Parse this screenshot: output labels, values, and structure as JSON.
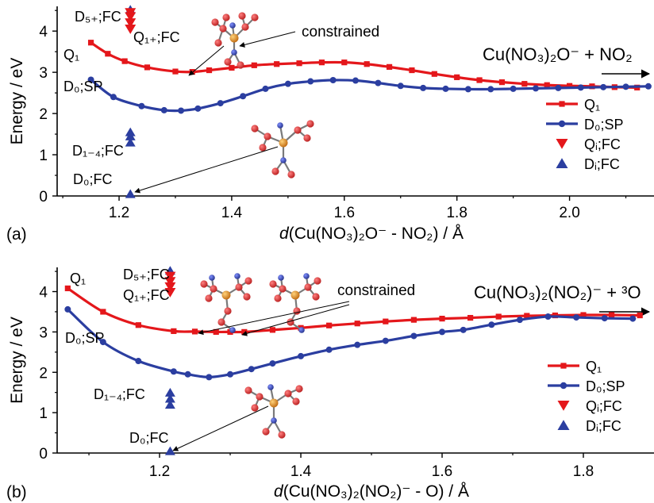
{
  "chart_data": [
    {
      "type": "line",
      "panel_label": "(a)",
      "xlabel": {
        "italic": "d",
        "rest": "(Cu(NO₃)₂O⁻ - NO₂) / Å"
      },
      "ylabel": "Energy / eV",
      "xlim": [
        1.09,
        2.15
      ],
      "ylim": [
        0,
        4.6
      ],
      "xticks": [
        1.2,
        1.4,
        1.6,
        1.8,
        2.0
      ],
      "yticks": [
        0,
        1,
        2,
        3,
        4
      ],
      "legend_position": "right",
      "product_label": "Cu(NO₃)₂O⁻ + NO₂",
      "annotation": "constrained",
      "series": [
        {
          "name": "Q₁",
          "color": "#e4171b",
          "marker": "square",
          "x": [
            1.15,
            1.18,
            1.21,
            1.25,
            1.3,
            1.33,
            1.36,
            1.4,
            1.44,
            1.48,
            1.52,
            1.56,
            1.6,
            1.64,
            1.68,
            1.72,
            1.76,
            1.8,
            1.84,
            1.88,
            1.92,
            1.96,
            2.0,
            2.04,
            2.08,
            2.12
          ],
          "y": [
            3.72,
            3.45,
            3.27,
            3.12,
            3.02,
            3.01,
            3.05,
            3.11,
            3.17,
            3.2,
            3.22,
            3.24,
            3.24,
            3.2,
            3.13,
            3.05,
            2.96,
            2.88,
            2.81,
            2.76,
            2.72,
            2.69,
            2.67,
            2.66,
            2.64,
            2.63
          ]
        },
        {
          "name": "D₀;SP",
          "color": "#2b3ea0",
          "marker": "circle",
          "x": [
            1.15,
            1.19,
            1.24,
            1.28,
            1.31,
            1.34,
            1.38,
            1.42,
            1.46,
            1.5,
            1.54,
            1.58,
            1.62,
            1.66,
            1.7,
            1.74,
            1.78,
            1.82,
            1.86,
            1.9,
            1.94,
            1.98,
            2.02,
            2.06,
            2.1,
            2.14
          ],
          "y": [
            2.82,
            2.4,
            2.18,
            2.08,
            2.07,
            2.12,
            2.25,
            2.42,
            2.6,
            2.72,
            2.78,
            2.81,
            2.8,
            2.74,
            2.67,
            2.62,
            2.6,
            2.59,
            2.59,
            2.6,
            2.61,
            2.62,
            2.63,
            2.64,
            2.65,
            2.66
          ]
        }
      ],
      "fc_points": {
        "Q_down": {
          "x": 1.22,
          "y": [
            4.05,
            4.2,
            4.35,
            4.45
          ]
        },
        "D_up": {
          "x": 1.22,
          "y": [
            1.3,
            1.45,
            1.55,
            4.52
          ]
        },
        "D0": {
          "x": 1.22,
          "y": 0.05
        }
      },
      "labels": {
        "q1": "Q₁",
        "d0sp": "D₀;SP",
        "d5": "D₅₊;FC",
        "q1fc": "Q₁₊;FC",
        "d14": "D₁₋₄;FC",
        "d0fc": "D₀;FC"
      },
      "legend": [
        "Q₁",
        "D₀;SP",
        "Qᵢ;FC",
        "Dᵢ;FC"
      ]
    },
    {
      "type": "line",
      "panel_label": "(b)",
      "xlabel": {
        "italic": "d",
        "rest": "(Cu(NO₃)₂(NO₂)⁻ - O) / Å"
      },
      "ylabel": "Energy / eV",
      "xlim": [
        1.055,
        1.9
      ],
      "ylim": [
        0,
        4.6
      ],
      "xticks": [
        1.2,
        1.4,
        1.6,
        1.8
      ],
      "yticks": [
        0,
        1,
        2,
        3,
        4
      ],
      "legend_position": "right",
      "product_label": "Cu(NO₃)₂(NO₂)⁻ + ³O",
      "annotation": "constrained",
      "series": [
        {
          "name": "Q₁",
          "color": "#e4171b",
          "marker": "square",
          "x": [
            1.07,
            1.12,
            1.17,
            1.22,
            1.25,
            1.28,
            1.3,
            1.32,
            1.36,
            1.4,
            1.44,
            1.48,
            1.52,
            1.56,
            1.6,
            1.64,
            1.68,
            1.72,
            1.76,
            1.8,
            1.84,
            1.88
          ],
          "y": [
            4.08,
            3.5,
            3.17,
            3.02,
            3.01,
            3.0,
            3.0,
            3.0,
            3.05,
            3.1,
            3.16,
            3.21,
            3.26,
            3.3,
            3.33,
            3.35,
            3.38,
            3.4,
            3.41,
            3.42,
            3.42,
            3.41
          ]
        },
        {
          "name": "D₀;SP",
          "color": "#2b3ea0",
          "marker": "circle",
          "x": [
            1.07,
            1.12,
            1.17,
            1.22,
            1.24,
            1.27,
            1.3,
            1.33,
            1.36,
            1.4,
            1.44,
            1.48,
            1.52,
            1.56,
            1.6,
            1.63,
            1.67,
            1.71,
            1.75,
            1.79,
            1.83,
            1.87
          ],
          "y": [
            3.56,
            2.75,
            2.28,
            2.02,
            1.95,
            1.88,
            1.95,
            2.08,
            2.22,
            2.4,
            2.56,
            2.68,
            2.78,
            2.9,
            3.0,
            3.05,
            3.18,
            3.3,
            3.38,
            3.36,
            3.34,
            3.33
          ]
        }
      ],
      "fc_points": {
        "Q_down": {
          "x": 1.215,
          "y": [
            3.98,
            4.12,
            4.25,
            4.38
          ]
        },
        "D_up": {
          "x": 1.215,
          "y": [
            1.2,
            1.35,
            1.5,
            4.52
          ]
        },
        "D0": {
          "x": 1.215,
          "y": 0.05
        }
      },
      "labels": {
        "q1": "Q₁",
        "d0sp": "D₀;SP",
        "d5": "D₅₊;FC",
        "q1fc": "Q₁₊;FC",
        "d14": "D₁₋₄;FC",
        "d0fc": "D₀;FC"
      },
      "legend": [
        "Q₁",
        "D₀;SP",
        "Qᵢ;FC",
        "Dᵢ;FC"
      ]
    }
  ],
  "colors": {
    "red": "#e4171b",
    "blue": "#2b3ea0",
    "atom_red": "#d62a2a",
    "atom_blue": "#3447b0",
    "atom_cu": "#e58a1f"
  },
  "icons": [
    "molecule-structure-icon",
    "arrow-right-icon"
  ]
}
